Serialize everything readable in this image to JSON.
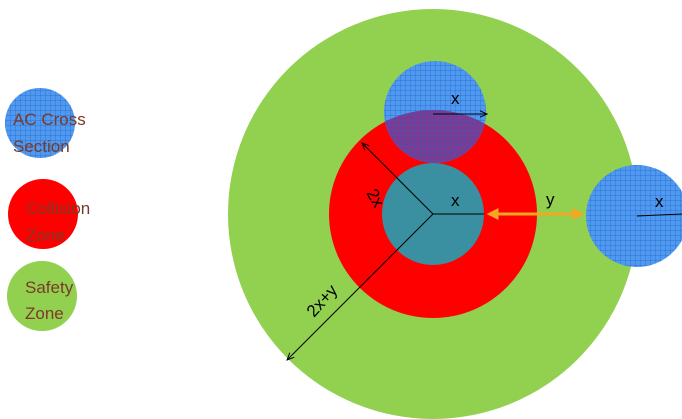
{
  "colors": {
    "ac_fill": "#4f9af0",
    "ac_grid": "#2563c9",
    "collision_fill": "#ff0000",
    "safety_fill": "#92d050",
    "legend_text": "#7a3a2a",
    "distance_arrow": "#f5a623",
    "line": "#000000",
    "overlap_red_blue": "#7e3a90",
    "overlap_center": "#3a8fa0"
  },
  "legend": {
    "ac": {
      "line1": "AC Cross",
      "line2": "Section"
    },
    "collision": {
      "line1": "Collision",
      "line2": "Zone"
    },
    "safety": {
      "line1": "Safety",
      "line2": "Zone"
    }
  },
  "diagram": {
    "label_x_top": "x",
    "label_x_center": "x",
    "label_x_right": "x",
    "label_y": "y",
    "label_2x": "2x",
    "label_2xy": "2x+y"
  }
}
